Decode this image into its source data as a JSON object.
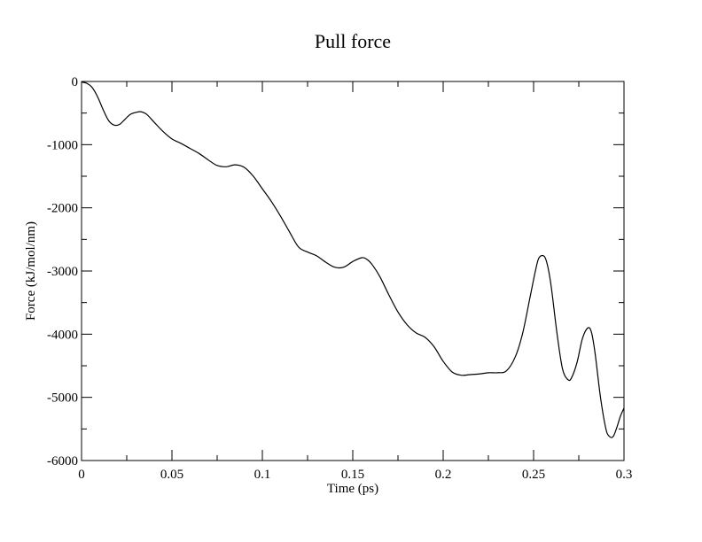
{
  "chart_data": {
    "type": "line",
    "title": "Pull force",
    "xlabel": "Time (ps)",
    "ylabel": "Force (kJ/mol/nm)",
    "xlim": [
      0,
      0.3
    ],
    "ylim": [
      -6000,
      0
    ],
    "xticks": [
      0,
      0.05,
      0.1,
      0.15,
      0.2,
      0.25,
      0.3
    ],
    "xtick_labels": [
      "0",
      "0.05",
      "0.1",
      "0.15",
      "0.2",
      "0.25",
      "0.3"
    ],
    "xminor_ticks": [
      0.025,
      0.075,
      0.125,
      0.175,
      0.225,
      0.275
    ],
    "yticks": [
      0,
      -1000,
      -2000,
      -3000,
      -4000,
      -5000,
      -6000
    ],
    "ytick_labels": [
      "0",
      "-1000",
      "-2000",
      "-3000",
      "-4000",
      "-5000",
      "-6000"
    ],
    "yminor_ticks": [
      -500,
      -1500,
      -2500,
      -3500,
      -4500,
      -5500
    ],
    "grid": false,
    "legend": "none",
    "series": [
      {
        "color": "#000000",
        "x": [
          0,
          0.003,
          0.006,
          0.009,
          0.012,
          0.015,
          0.018,
          0.021,
          0.024,
          0.027,
          0.03,
          0.033,
          0.036,
          0.04,
          0.045,
          0.05,
          0.055,
          0.06,
          0.065,
          0.07,
          0.075,
          0.08,
          0.085,
          0.09,
          0.095,
          0.1,
          0.105,
          0.11,
          0.115,
          0.12,
          0.125,
          0.13,
          0.135,
          0.14,
          0.145,
          0.15,
          0.155,
          0.158,
          0.161,
          0.165,
          0.17,
          0.175,
          0.18,
          0.185,
          0.19,
          0.195,
          0.2,
          0.205,
          0.21,
          0.215,
          0.22,
          0.225,
          0.23,
          0.235,
          0.24,
          0.244,
          0.248,
          0.251,
          0.253,
          0.256,
          0.258,
          0.26,
          0.263,
          0.266,
          0.269,
          0.271,
          0.274,
          0.277,
          0.28,
          0.282,
          0.284,
          0.287,
          0.29,
          0.292,
          0.294,
          0.296,
          0.298,
          0.3
        ],
        "y": [
          -10,
          -30,
          -100,
          -250,
          -450,
          -620,
          -690,
          -680,
          -600,
          -520,
          -490,
          -480,
          -520,
          -640,
          -790,
          -910,
          -980,
          -1060,
          -1140,
          -1240,
          -1330,
          -1350,
          -1320,
          -1360,
          -1500,
          -1700,
          -1900,
          -2130,
          -2380,
          -2620,
          -2700,
          -2760,
          -2860,
          -2940,
          -2940,
          -2850,
          -2790,
          -2820,
          -2910,
          -3090,
          -3380,
          -3650,
          -3850,
          -3980,
          -4050,
          -4200,
          -4430,
          -4600,
          -4650,
          -4640,
          -4630,
          -4610,
          -4610,
          -4580,
          -4350,
          -3980,
          -3420,
          -3000,
          -2790,
          -2770,
          -2950,
          -3300,
          -4000,
          -4550,
          -4720,
          -4690,
          -4450,
          -4070,
          -3900,
          -3970,
          -4300,
          -5000,
          -5500,
          -5620,
          -5620,
          -5480,
          -5300,
          -5170
        ]
      }
    ]
  }
}
